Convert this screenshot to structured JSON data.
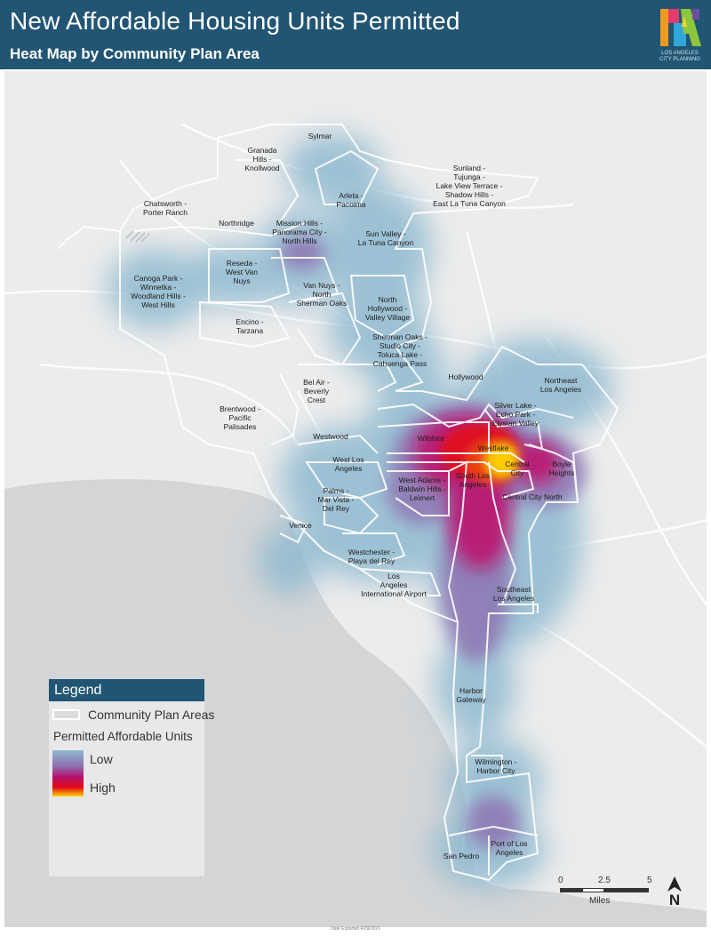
{
  "header": {
    "title": "New Affordable Housing Units Permitted",
    "subtitle": "Heat Map by Community Plan Area",
    "logo_text": "LOS ANGELES CITY PLANNING",
    "background_color": "#215573"
  },
  "map": {
    "areas": [
      {
        "id": "sylmar",
        "lines": [
          "Sylmar"
        ]
      },
      {
        "id": "granada-hills",
        "lines": [
          "Granada",
          "Hills -",
          "Knollwood"
        ]
      },
      {
        "id": "sunland",
        "lines": [
          "Sunland -",
          "Tujunga -",
          "Lake View Terrace -",
          "Shadow Hills -",
          "East La Tuna Canyon"
        ]
      },
      {
        "id": "chatsworth",
        "lines": [
          "Chatsworth -",
          "Porter Ranch"
        ]
      },
      {
        "id": "arleta",
        "lines": [
          "Arleta -",
          "Pacoima"
        ]
      },
      {
        "id": "northridge",
        "lines": [
          "Northridge"
        ]
      },
      {
        "id": "mission-hills",
        "lines": [
          "Mission Hills -",
          "Panorama City -",
          "North Hills"
        ]
      },
      {
        "id": "sun-valley",
        "lines": [
          "Sun Valley -",
          "La Tuna Canyon"
        ]
      },
      {
        "id": "reseda",
        "lines": [
          "Reseda -",
          "West Van",
          "Nuys"
        ]
      },
      {
        "id": "canoga-park",
        "lines": [
          "Canoga Park -",
          "Winnetka -",
          "Woodland Hills -",
          "West Hills"
        ]
      },
      {
        "id": "van-nuys",
        "lines": [
          "Van Nuys -",
          "North",
          "Sherman Oaks"
        ]
      },
      {
        "id": "north-hollywood",
        "lines": [
          "North",
          "Hollywood -",
          "Valley Village"
        ]
      },
      {
        "id": "encino",
        "lines": [
          "Encino -",
          "Tarzana"
        ]
      },
      {
        "id": "sherman-oaks",
        "lines": [
          "Sherman Oaks -",
          "Studio City -",
          "Toluca Lake -",
          "Cahuenga Pass"
        ]
      },
      {
        "id": "hollywood",
        "lines": [
          "Hollywood"
        ]
      },
      {
        "id": "northeast-la",
        "lines": [
          "Northeast",
          "Los Angeles"
        ]
      },
      {
        "id": "bel-air",
        "lines": [
          "Bel Air -",
          "Beverly",
          "Crest"
        ]
      },
      {
        "id": "brentwood",
        "lines": [
          "Brentwood -",
          "Pacific",
          "Palisades"
        ]
      },
      {
        "id": "silver-lake",
        "lines": [
          "Silver Lake -",
          "Echo Park -",
          "Elysian Valley"
        ]
      },
      {
        "id": "wilshire",
        "lines": [
          "Wilshire"
        ]
      },
      {
        "id": "westwood",
        "lines": [
          "Westwood"
        ]
      },
      {
        "id": "westlake",
        "lines": [
          "Westlake"
        ]
      },
      {
        "id": "central-city",
        "lines": [
          "Central",
          "City"
        ]
      },
      {
        "id": "boyle-heights",
        "lines": [
          "Boyle",
          "Heights"
        ]
      },
      {
        "id": "west-la",
        "lines": [
          "West Los",
          "Angeles"
        ]
      },
      {
        "id": "south-la",
        "lines": [
          "South Los",
          "Angeles"
        ]
      },
      {
        "id": "central-city-north",
        "lines": [
          "Central City North"
        ]
      },
      {
        "id": "west-adams",
        "lines": [
          "West Adams -",
          "Baldwin Hills -",
          "Leimert"
        ]
      },
      {
        "id": "palms",
        "lines": [
          "Palms -",
          "Mar Vista -",
          "Del Rey"
        ]
      },
      {
        "id": "venice",
        "lines": [
          "Venice"
        ]
      },
      {
        "id": "westchester",
        "lines": [
          "Westchester -",
          "Playa del Rey"
        ]
      },
      {
        "id": "lax",
        "lines": [
          "Los",
          "Angeles",
          "International Airport"
        ]
      },
      {
        "id": "southeast-la",
        "lines": [
          "Southeast",
          "Los Angeles"
        ]
      },
      {
        "id": "harbor-gateway",
        "lines": [
          "Harbor",
          "Gateway"
        ]
      },
      {
        "id": "wilmington",
        "lines": [
          "Wilmington -",
          "Harbor City"
        ]
      },
      {
        "id": "san-pedro",
        "lines": [
          "San Pedro"
        ]
      },
      {
        "id": "port-la",
        "lines": [
          "Port of Los",
          "Angeles"
        ]
      }
    ],
    "heat_low_color": "#8fbad0",
    "heat_mid_color": "#8d6fb0",
    "heat_high_color": "#e2081a",
    "heat_peak_color": "#ffd400"
  },
  "legend": {
    "title": "Legend",
    "boundary_label": "Community Plan Areas",
    "heat_label": "Permitted Affordable Units",
    "low_label": "Low",
    "high_label": "High"
  },
  "scale_bar": {
    "ticks": [
      "0",
      "2.5",
      "5"
    ],
    "unit": "Miles"
  },
  "north_arrow": {
    "letter": "N"
  },
  "footer": {
    "text": "Date Exported 4/29/2021"
  }
}
